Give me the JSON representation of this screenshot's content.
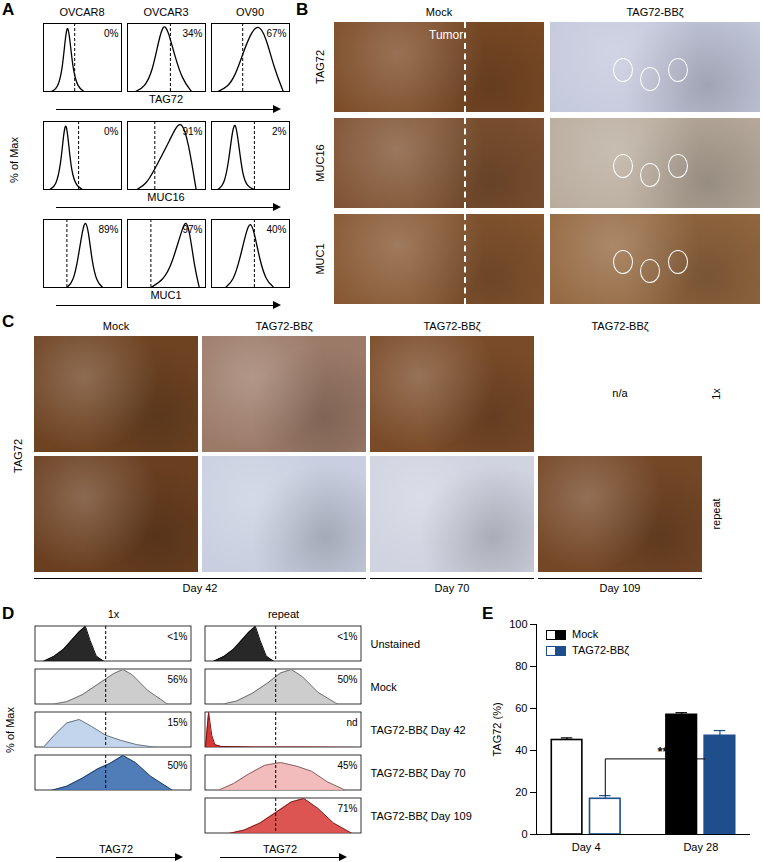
{
  "chart_data": [
    {
      "panel": "A",
      "type": "histogram_grid",
      "y_label": "% of Max",
      "columns": [
        "OVCAR8",
        "OVCAR3",
        "OV90"
      ],
      "xlim": [
        0,
        100
      ],
      "ylim": [
        0,
        100
      ],
      "tick_labels": false,
      "rows": [
        {
          "x_label": "TAG72",
          "cells": [
            {
              "annotation": "0%",
              "gate": 40,
              "x": [
                10,
                18,
                24,
                28,
                31,
                34,
                38,
                44,
                52
              ],
              "y": [
                0,
                4,
                30,
                80,
                100,
                75,
                30,
                6,
                0
              ]
            },
            {
              "annotation": "34%",
              "gate": 55,
              "x": [
                10,
                22,
                32,
                40,
                46,
                52,
                60,
                70,
                82
              ],
              "y": [
                0,
                6,
                30,
                75,
                100,
                90,
                55,
                18,
                0
              ]
            },
            {
              "annotation": "67%",
              "gate": 40,
              "x": [
                8,
                20,
                30,
                40,
                50,
                60,
                70,
                80,
                92
              ],
              "y": [
                0,
                6,
                22,
                55,
                85,
                100,
                80,
                35,
                0
              ]
            }
          ]
        },
        {
          "x_label": "MUC16",
          "cells": [
            {
              "annotation": "0%",
              "gate": 45,
              "x": [
                8,
                16,
                22,
                26,
                29,
                32,
                36,
                42,
                50
              ],
              "y": [
                0,
                5,
                35,
                85,
                100,
                70,
                25,
                5,
                0
              ]
            },
            {
              "annotation": "91%",
              "gate": 35,
              "x": [
                12,
                24,
                34,
                44,
                54,
                62,
                70,
                78,
                88
              ],
              "y": [
                0,
                8,
                28,
                50,
                72,
                92,
                100,
                70,
                0
              ]
            },
            {
              "annotation": "2%",
              "gate": 55,
              "x": [
                8,
                16,
                22,
                27,
                31,
                35,
                40,
                46,
                55
              ],
              "y": [
                0,
                6,
                40,
                90,
                100,
                65,
                20,
                4,
                0
              ]
            }
          ]
        },
        {
          "x_label": "MUC1",
          "cells": [
            {
              "annotation": "89%",
              "gate": 30,
              "x": [
                30,
                38,
                44,
                50,
                54,
                58,
                62,
                68,
                76
              ],
              "y": [
                0,
                8,
                40,
                85,
                100,
                80,
                40,
                8,
                0
              ]
            },
            {
              "annotation": "97%",
              "gate": 30,
              "x": [
                30,
                45,
                55,
                62,
                70,
                75,
                80,
                86,
                92
              ],
              "y": [
                0,
                10,
                30,
                55,
                85,
                100,
                80,
                30,
                0
              ]
            },
            {
              "annotation": "40%",
              "gate": 55,
              "x": [
                18,
                28,
                36,
                44,
                50,
                56,
                62,
                70,
                80
              ],
              "y": [
                0,
                10,
                40,
                80,
                100,
                75,
                40,
                10,
                0
              ]
            }
          ]
        }
      ]
    },
    {
      "panel": "B",
      "type": "image_grid",
      "columns": [
        "Mock",
        "TAG72-BBζ"
      ],
      "rows": [
        "TAG72",
        "MUC16",
        "MUC1"
      ],
      "annotation": "Tumor",
      "colors": [
        [
          "#7b4a25",
          "#c4c8dc"
        ],
        [
          "#7e5130",
          "#b8ab9c"
        ],
        [
          "#85552f",
          "#93673f"
        ]
      ]
    },
    {
      "panel": "C",
      "type": "image_grid",
      "y_label": "TAG72",
      "columns": [
        "Mock",
        "TAG72-BBζ",
        "TAG72-BBζ",
        "TAG72-BBζ"
      ],
      "rows": [
        "1x",
        "repeat"
      ],
      "x_groups": [
        {
          "label": "Day 42",
          "columns": 2
        },
        {
          "label": "Day 70",
          "columns": 1
        },
        {
          "label": "Day 109",
          "columns": 1
        }
      ],
      "cells": [
        [
          {
            "color": "#6e4322"
          },
          {
            "color": "#9c7a68"
          },
          {
            "color": "#7a4b28"
          },
          {
            "text": "n/a"
          }
        ],
        [
          {
            "color": "#6a3f20"
          },
          {
            "color": "#c9cfe0"
          },
          {
            "color": "#d0d3e0"
          },
          {
            "color": "#744726"
          }
        ]
      ]
    },
    {
      "panel": "D",
      "type": "histogram_stack",
      "y_label": "% of Max",
      "x_label": "TAG72",
      "xlim": [
        0,
        100
      ],
      "ylim": [
        0,
        100
      ],
      "tick_labels": false,
      "gate": 45,
      "columns": [
        "1x",
        "repeat"
      ],
      "rows": [
        "Unstained",
        "Mock",
        "TAG72-BBζ Day 42",
        "TAG72-BBζ Day 70",
        "TAG72-BBζ Day 109"
      ],
      "series": [
        {
          "column": "1x",
          "row": "Unstained",
          "annotation": "<1%",
          "color": "#111111",
          "x": [
            5,
            12,
            18,
            23,
            28,
            32,
            35,
            39,
            44
          ],
          "y": [
            0,
            15,
            35,
            60,
            85,
            100,
            60,
            15,
            0
          ]
        },
        {
          "column": "1x",
          "row": "Mock",
          "annotation": "56%",
          "color": "#c8c8c8",
          "x": [
            10,
            20,
            30,
            40,
            50,
            56,
            62,
            72,
            85
          ],
          "y": [
            0,
            8,
            28,
            58,
            88,
            100,
            85,
            40,
            0
          ]
        },
        {
          "column": "1x",
          "row": "TAG72-BBζ Day 42",
          "annotation": "15%",
          "color": "#bcd0ea",
          "x": [
            5,
            12,
            20,
            28,
            36,
            45,
            55,
            65,
            78
          ],
          "y": [
            0,
            35,
            70,
            80,
            60,
            35,
            20,
            8,
            0
          ]
        },
        {
          "column": "1x",
          "row": "TAG72-BBζ Day 70",
          "annotation": "50%",
          "color": "#3d6fb0",
          "x": [
            10,
            20,
            30,
            40,
            48,
            56,
            64,
            74,
            88
          ],
          "y": [
            0,
            12,
            35,
            62,
            78,
            100,
            80,
            40,
            0
          ]
        },
        {
          "column": "repeat",
          "row": "Unstained",
          "annotation": "<1%",
          "color": "#111111",
          "x": [
            5,
            12,
            18,
            23,
            28,
            32,
            35,
            39,
            44
          ],
          "y": [
            0,
            15,
            35,
            60,
            85,
            100,
            60,
            15,
            0
          ]
        },
        {
          "column": "repeat",
          "row": "Mock",
          "annotation": "50%",
          "color": "#c8c8c8",
          "x": [
            10,
            20,
            30,
            40,
            48,
            55,
            62,
            72,
            85
          ],
          "y": [
            0,
            10,
            32,
            62,
            90,
            100,
            80,
            35,
            0
          ]
        },
        {
          "column": "repeat",
          "row": "TAG72-BBζ Day 42",
          "annotation": "nd",
          "color": "#d62020",
          "x": [
            0,
            2,
            4,
            6,
            10,
            30,
            60,
            100
          ],
          "y": [
            0,
            100,
            35,
            8,
            3,
            1,
            1,
            0
          ]
        },
        {
          "column": "repeat",
          "row": "TAG72-BBζ Day 70",
          "annotation": "45%",
          "color": "#f2b5b5",
          "x": [
            8,
            18,
            28,
            38,
            48,
            58,
            68,
            78,
            90
          ],
          "y": [
            0,
            20,
            48,
            72,
            80,
            70,
            55,
            25,
            0
          ]
        },
        {
          "column": "repeat",
          "row": "TAG72-BBζ Day 109",
          "annotation": "71%",
          "color": "#d9423f",
          "x": [
            15,
            25,
            35,
            45,
            55,
            63,
            72,
            82,
            94
          ],
          "y": [
            0,
            10,
            30,
            60,
            90,
            100,
            72,
            30,
            0
          ]
        }
      ]
    },
    {
      "panel": "E",
      "type": "bar",
      "y_label": "TAG72 (%)",
      "categories": [
        "Day 4",
        "Day 28"
      ],
      "ylim": [
        0,
        100
      ],
      "yticks": [
        0,
        20,
        40,
        60,
        80,
        100
      ],
      "legend": "top-left",
      "series": [
        {
          "name": "Mock",
          "color": "#000000",
          "colors": [
            "#ffffff",
            "#000000"
          ],
          "values": [
            45,
            57
          ],
          "errors": [
            1,
            1
          ]
        },
        {
          "name": "TAG72-BBζ",
          "color": "#1f4e8c",
          "colors": [
            "#ffffff",
            "#1f4e8c"
          ],
          "values": [
            17,
            47
          ],
          "errors": [
            1.5,
            2.5
          ]
        }
      ],
      "annotations": [
        {
          "text": "**",
          "series": "TAG72-BBζ",
          "y": 36
        }
      ]
    }
  ]
}
